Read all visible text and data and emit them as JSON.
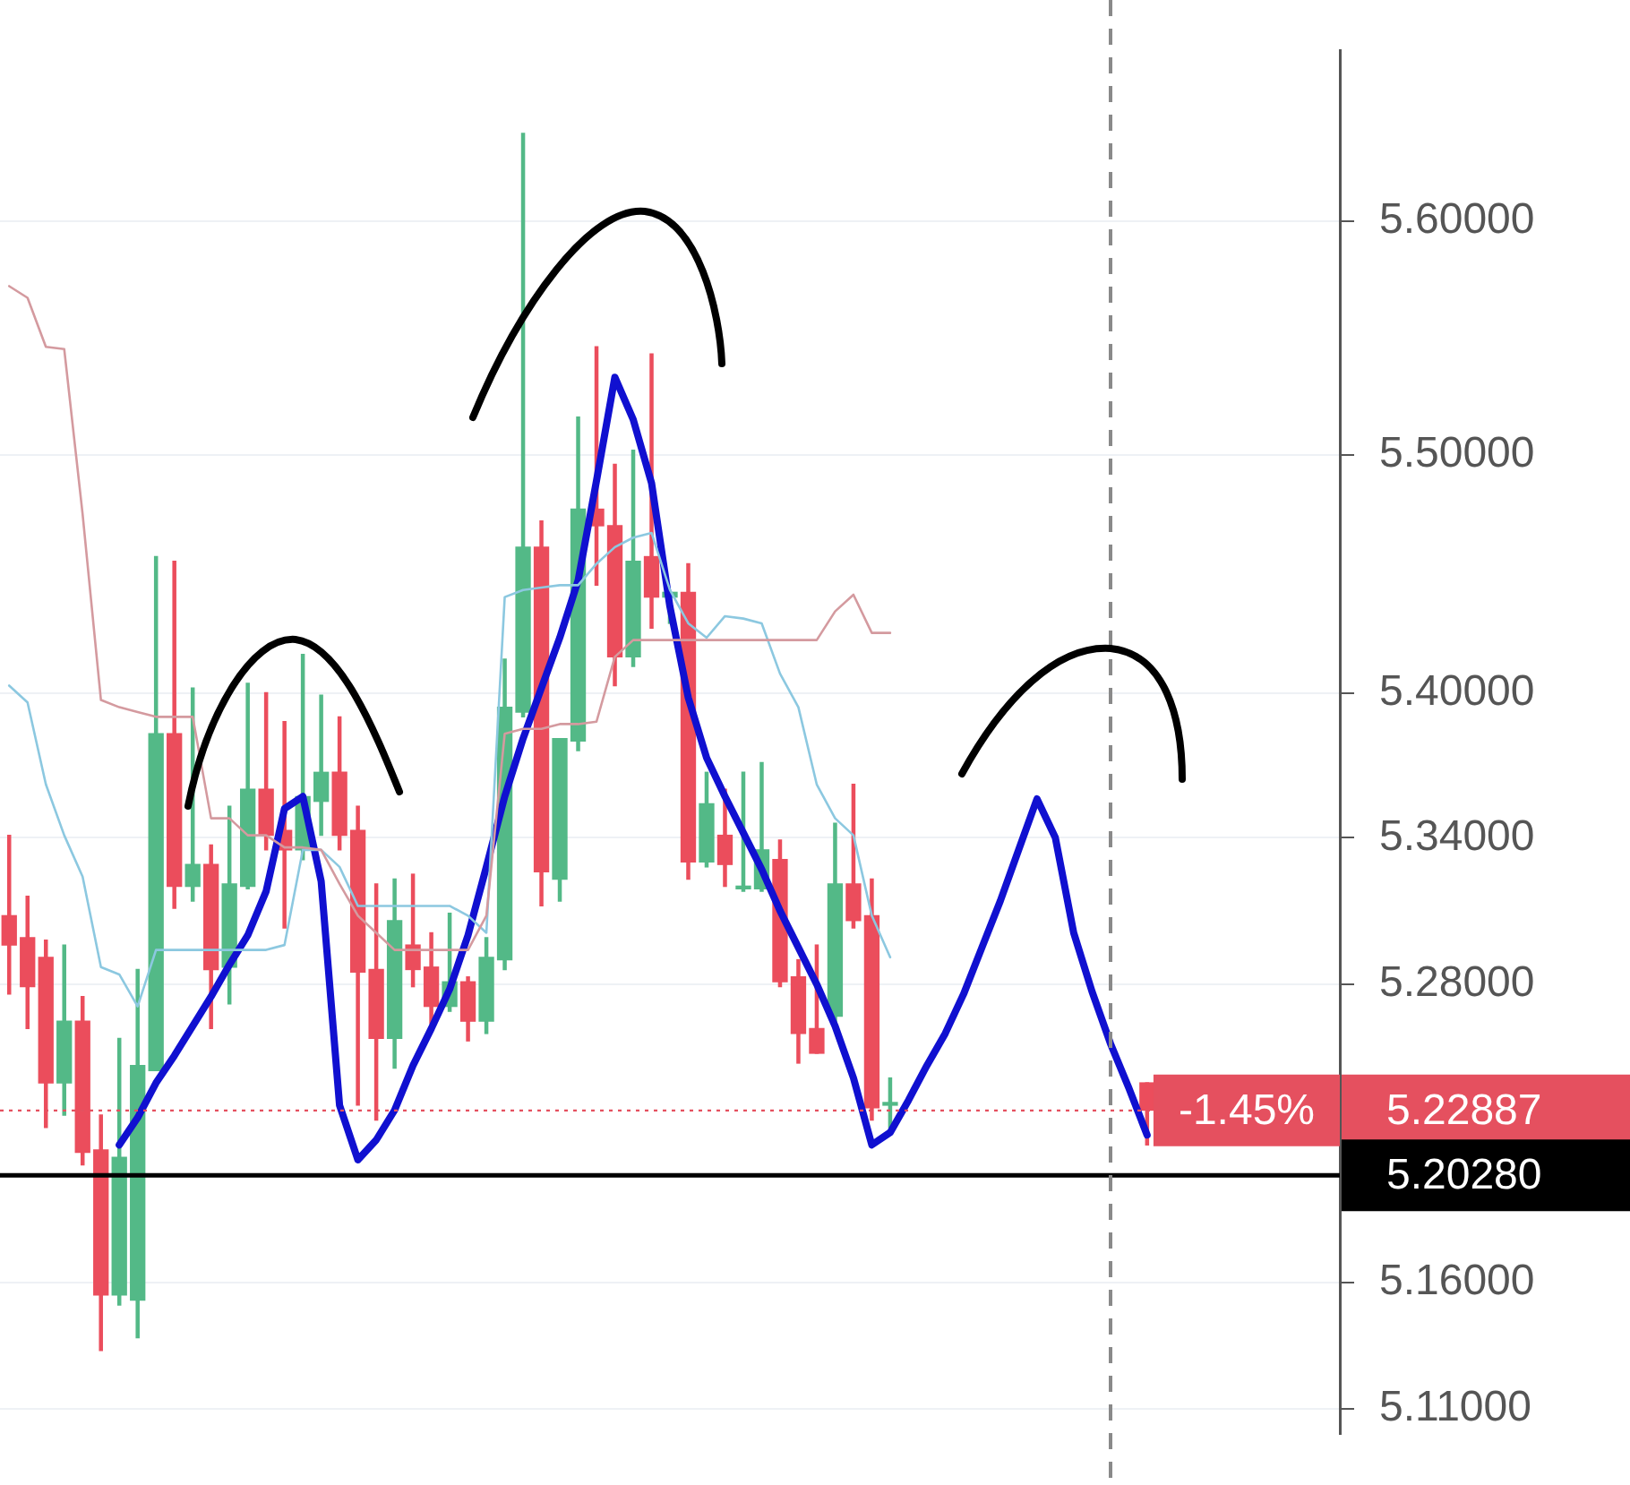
{
  "chart_data": {
    "type": "candlestick",
    "categories": [
      null,
      null,
      null,
      null,
      null,
      null,
      null,
      null,
      null,
      null,
      null,
      null,
      null,
      null,
      null,
      null,
      null,
      null,
      null,
      null,
      null,
      null,
      null,
      null,
      null,
      null,
      null,
      null,
      null,
      null,
      null,
      null,
      null,
      null,
      null,
      null,
      null,
      null,
      null,
      null,
      null,
      null,
      null,
      null,
      null,
      null,
      null,
      null,
      null,
      null,
      null,
      null,
      null,
      null,
      null,
      null,
      null,
      null,
      null,
      null,
      null,
      null,
      null,
      null,
      null,
      null,
      null,
      null,
      null,
      null,
      null,
      null,
      null
    ],
    "ohlc": [
      [
        5.308,
        5.341,
        5.276,
        5.296
      ],
      [
        5.299,
        5.316,
        5.262,
        5.279
      ],
      [
        5.291,
        5.298,
        5.222,
        5.24
      ],
      [
        5.24,
        5.296,
        5.227,
        5.265
      ],
      [
        5.265,
        5.275,
        5.207,
        5.212
      ],
      [
        5.213,
        5.227,
        5.133,
        5.155
      ],
      [
        5.155,
        5.258,
        5.151,
        5.21
      ],
      [
        5.153,
        5.286,
        5.138,
        5.247
      ],
      [
        5.245,
        5.457,
        5.245,
        5.383
      ],
      [
        5.383,
        5.455,
        5.311,
        5.32
      ],
      [
        5.32,
        5.402,
        5.314,
        5.329
      ],
      [
        5.329,
        5.337,
        5.262,
        5.286
      ],
      [
        5.287,
        5.353,
        5.272,
        5.321
      ],
      [
        5.32,
        5.404,
        5.319,
        5.36
      ],
      [
        5.36,
        5.4,
        5.335,
        5.341
      ],
      [
        5.343,
        5.388,
        5.303,
        5.335
      ],
      [
        5.335,
        5.416,
        5.331,
        5.357
      ],
      [
        5.355,
        5.399,
        5.341,
        5.367
      ],
      [
        5.367,
        5.39,
        5.335,
        5.341
      ],
      [
        5.343,
        5.353,
        5.231,
        5.285
      ],
      [
        5.286,
        5.321,
        5.225,
        5.258
      ],
      [
        5.258,
        5.323,
        5.246,
        5.306
      ],
      [
        5.296,
        5.325,
        5.279,
        5.286
      ],
      [
        5.287,
        5.301,
        5.264,
        5.271
      ],
      [
        5.271,
        5.309,
        5.269,
        5.281
      ],
      [
        5.281,
        5.283,
        5.257,
        5.265
      ],
      [
        5.265,
        5.299,
        5.26,
        5.291
      ],
      [
        5.29,
        5.414,
        5.286,
        5.394
      ],
      [
        5.392,
        5.638,
        5.39,
        5.461
      ],
      [
        5.461,
        5.472,
        5.312,
        5.326
      ],
      [
        5.323,
        5.381,
        5.314,
        5.381
      ],
      [
        5.38,
        5.516,
        5.376,
        5.477
      ],
      [
        5.477,
        5.546,
        5.445,
        5.47
      ],
      [
        5.47,
        5.496,
        5.403,
        5.415
      ],
      [
        5.415,
        5.502,
        5.411,
        5.455
      ],
      [
        5.457,
        5.543,
        5.427,
        5.44
      ],
      [
        5.44,
        5.442,
        5.429,
        5.442
      ],
      [
        5.442,
        5.454,
        5.323,
        5.33
      ],
      [
        5.33,
        5.367,
        5.328,
        5.354
      ],
      [
        5.341,
        5.36,
        5.32,
        5.329
      ],
      [
        5.319,
        5.367,
        5.318,
        5.32
      ],
      [
        5.319,
        5.371,
        5.318,
        5.335
      ],
      [
        5.331,
        5.339,
        5.279,
        5.281
      ],
      [
        5.283,
        5.29,
        5.248,
        5.26
      ],
      [
        5.262,
        5.296,
        5.252,
        5.252
      ],
      [
        5.267,
        5.346,
        5.264,
        5.321
      ],
      [
        5.321,
        5.362,
        5.303,
        5.306
      ],
      [
        5.308,
        5.323,
        5.225,
        5.23
      ],
      [
        5.231,
        5.242,
        5.222,
        5.231
      ],
      null,
      null,
      null,
      null,
      null,
      null,
      null,
      null,
      null,
      null,
      null,
      null,
      null,
      [
        5.24,
        5.24,
        5.215,
        5.229
      ],
      null,
      null,
      null,
      null,
      null,
      null,
      null,
      null,
      null,
      null
    ],
    "series": [
      {
        "type": "line",
        "color": "#d49a9f",
        "values": [
          5.572,
          5.567,
          5.546,
          5.545,
          5.475,
          5.397,
          5.394,
          5.392,
          5.39,
          5.39,
          5.39,
          5.348,
          5.348,
          5.341,
          5.341,
          5.336,
          5.336,
          5.335,
          5.321,
          5.308,
          5.301,
          5.294,
          5.294,
          5.294,
          5.294,
          5.294,
          5.308,
          5.383,
          5.385,
          5.385,
          5.387,
          5.387,
          5.388,
          5.415,
          5.422,
          5.422,
          5.422,
          5.422,
          5.422,
          5.422,
          5.422,
          5.422,
          5.422,
          5.422,
          5.422,
          5.434,
          5.441,
          5.425,
          5.425,
          null,
          null,
          null,
          null,
          null,
          null,
          null,
          null,
          null,
          null,
          null,
          null,
          null,
          null,
          null,
          null,
          null,
          null,
          null,
          null,
          null,
          null,
          null,
          null
        ]
      },
      {
        "type": "line",
        "color": "#8cc8e0",
        "values": [
          5.403,
          5.396,
          5.362,
          5.341,
          5.324,
          5.287,
          5.284,
          5.271,
          5.294,
          5.294,
          5.294,
          5.294,
          5.294,
          5.294,
          5.294,
          5.296,
          5.335,
          5.335,
          5.328,
          5.312,
          5.312,
          5.312,
          5.312,
          5.312,
          5.312,
          5.308,
          5.301,
          5.44,
          5.443,
          5.444,
          5.445,
          5.445,
          5.454,
          5.461,
          5.465,
          5.467,
          5.443,
          5.429,
          5.423,
          5.432,
          5.431,
          5.429,
          5.408,
          5.394,
          5.362,
          5.348,
          5.341,
          5.308,
          5.291,
          null,
          null,
          null,
          null,
          null,
          null,
          null,
          null,
          null,
          null,
          null,
          null,
          null,
          null,
          null,
          null,
          null,
          null,
          null,
          null,
          null,
          null,
          null,
          null
        ]
      },
      {
        "type": "line",
        "color": "#1010d0",
        "values": [
          null,
          null,
          null,
          null,
          null,
          null,
          5.215,
          5.226,
          5.24,
          5.251,
          5.263,
          5.275,
          5.288,
          5.3,
          5.318,
          5.352,
          5.357,
          5.322,
          5.231,
          5.209,
          5.217,
          5.229,
          5.247,
          5.262,
          5.278,
          5.3,
          5.328,
          5.357,
          5.381,
          5.402,
          5.423,
          5.447,
          5.489,
          5.533,
          5.515,
          5.488,
          5.436,
          5.398,
          5.373,
          5.357,
          5.342,
          5.327,
          5.31,
          5.295,
          5.28,
          5.263,
          5.242,
          5.215,
          5.22,
          5.233,
          5.247,
          5.26,
          5.276,
          5.295,
          5.314,
          5.335,
          5.356,
          5.34,
          5.301,
          5.277,
          5.256,
          5.238,
          5.219,
          null,
          null,
          null,
          null,
          null,
          null,
          null,
          null,
          null,
          null
        ]
      }
    ],
    "log": "y",
    "ylim": [
      5.1,
      5.674
    ],
    "yticks": [
      {
        "value": 5.11,
        "label": "5.11000"
      },
      {
        "value": 5.16,
        "label": "5.16000"
      },
      {
        "value": 5.28,
        "label": "5.28000"
      },
      {
        "value": 5.34,
        "label": "5.34000"
      },
      {
        "value": 5.4,
        "label": "5.40000"
      },
      {
        "value": 5.5,
        "label": "5.50000"
      },
      {
        "value": 5.6,
        "label": "5.60000"
      }
    ],
    "grid": "y",
    "ref_lines": [
      {
        "axis": "y",
        "value": 5.22887,
        "label": "5.22887",
        "color": "#e5505f",
        "line_style": "dotted"
      },
      {
        "axis": "y",
        "value": 5.2028,
        "label": "5.20280",
        "color": "#000000",
        "line_style": "solid"
      }
    ],
    "annotations": [
      {
        "text": "-1.45%",
        "y": 5.22887
      }
    ]
  }
}
